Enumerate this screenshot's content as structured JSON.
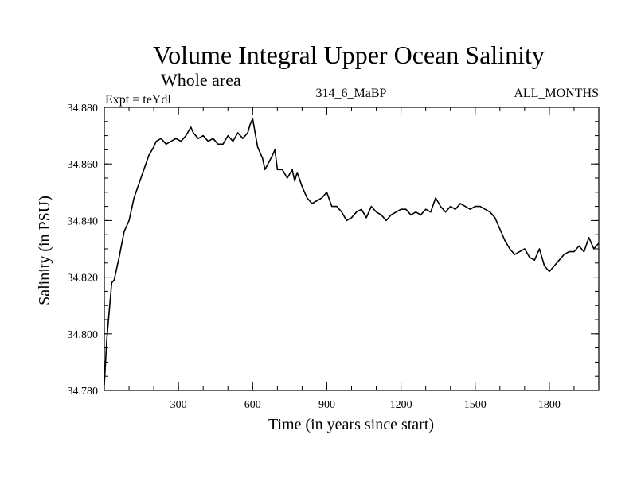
{
  "chart_data": {
    "type": "line",
    "title": "Volume Integral Upper Ocean Salinity",
    "subtitle": "Whole area",
    "annotations": {
      "left": "Expt = teYdl",
      "center": "314_6_MaBP",
      "right": "ALL_MONTHS"
    },
    "xlabel": "Time (in years since start)",
    "ylabel": "Salinity (in PSU)",
    "xlim": [
      0,
      2000
    ],
    "ylim": [
      34.78,
      34.88
    ],
    "x_ticks": [
      300,
      600,
      900,
      1200,
      1500,
      1800
    ],
    "x_tick_labels": [
      "300",
      "600",
      "900",
      "1200",
      "1500",
      "1800"
    ],
    "y_ticks": [
      34.78,
      34.8,
      34.82,
      34.84,
      34.86,
      34.88
    ],
    "y_tick_labels": [
      "34.780",
      "34.800",
      "34.820",
      "34.840",
      "34.860",
      "34.880"
    ],
    "grid": false,
    "line_color": "#000000",
    "series": [
      {
        "name": "Salinity",
        "x": [
          0,
          10,
          20,
          30,
          40,
          60,
          80,
          100,
          120,
          140,
          160,
          180,
          200,
          210,
          230,
          250,
          270,
          290,
          310,
          330,
          350,
          360,
          380,
          400,
          420,
          440,
          460,
          480,
          500,
          520,
          540,
          560,
          580,
          590,
          600,
          610,
          620,
          640,
          650,
          680,
          690,
          700,
          720,
          740,
          760,
          770,
          780,
          800,
          820,
          840,
          860,
          880,
          900,
          920,
          940,
          960,
          980,
          1000,
          1020,
          1040,
          1060,
          1080,
          1100,
          1120,
          1140,
          1160,
          1180,
          1200,
          1220,
          1240,
          1260,
          1280,
          1300,
          1320,
          1340,
          1360,
          1380,
          1400,
          1420,
          1440,
          1460,
          1480,
          1500,
          1520,
          1540,
          1560,
          1580,
          1600,
          1620,
          1640,
          1660,
          1680,
          1700,
          1720,
          1740,
          1760,
          1780,
          1800,
          1820,
          1840,
          1860,
          1880,
          1900,
          1920,
          1940,
          1960,
          1980,
          2000
        ],
        "values": [
          34.782,
          34.798,
          34.808,
          34.818,
          34.819,
          34.827,
          34.836,
          34.84,
          34.848,
          34.853,
          34.858,
          34.863,
          34.866,
          34.868,
          34.869,
          34.867,
          34.868,
          34.869,
          34.868,
          34.87,
          34.873,
          34.871,
          34.869,
          34.87,
          34.868,
          34.869,
          34.867,
          34.867,
          34.87,
          34.868,
          34.871,
          34.869,
          34.871,
          34.874,
          34.876,
          34.871,
          34.866,
          34.862,
          34.858,
          34.863,
          34.865,
          34.858,
          34.858,
          34.855,
          34.858,
          34.854,
          34.857,
          34.852,
          34.848,
          34.846,
          34.847,
          34.848,
          34.85,
          34.845,
          34.845,
          34.843,
          34.84,
          34.841,
          34.843,
          34.844,
          34.841,
          34.845,
          34.843,
          34.842,
          34.84,
          34.842,
          34.843,
          34.844,
          34.844,
          34.842,
          34.843,
          34.842,
          34.844,
          34.843,
          34.848,
          34.845,
          34.843,
          34.845,
          34.844,
          34.846,
          34.845,
          34.844,
          34.845,
          34.845,
          34.844,
          34.843,
          34.841,
          34.837,
          34.833,
          34.83,
          34.828,
          34.829,
          34.83,
          34.827,
          34.826,
          34.83,
          34.824,
          34.822,
          34.824,
          34.826,
          34.828,
          34.829,
          34.829,
          34.831,
          34.829,
          34.834,
          34.83,
          34.832
        ]
      }
    ]
  }
}
